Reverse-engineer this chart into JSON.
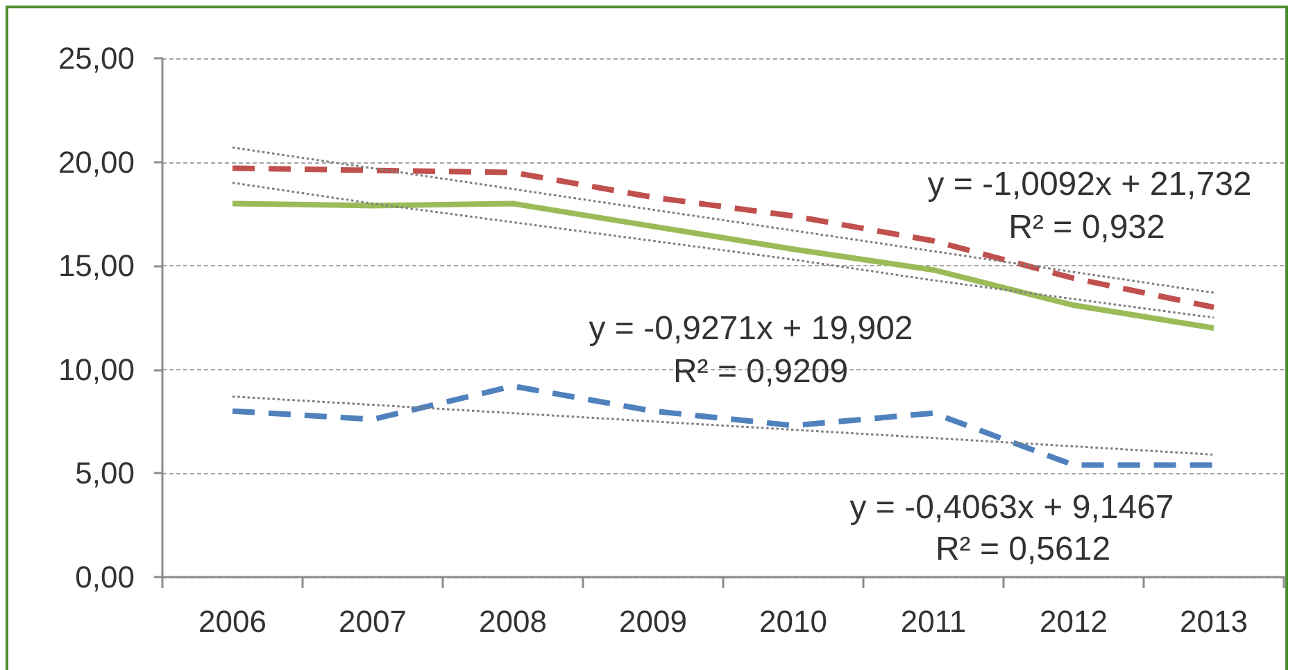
{
  "chart_data": {
    "type": "line",
    "categories": [
      "2006",
      "2007",
      "2008",
      "2009",
      "2010",
      "2011",
      "2012",
      "2013"
    ],
    "series": [
      {
        "color": "#c0504d",
        "line_style": "dashed",
        "values": [
          19.7,
          19.6,
          19.5,
          18.3,
          17.4,
          16.2,
          14.4,
          13.0
        ]
      },
      {
        "color": "#9bbb59",
        "line_style": "solid",
        "values": [
          18.0,
          17.9,
          18.0,
          16.9,
          15.8,
          14.8,
          13.1,
          12.0
        ]
      },
      {
        "color": "#4f81bd",
        "line_style": "dashed",
        "values": [
          8.0,
          7.6,
          9.2,
          8.0,
          7.3,
          7.9,
          5.4,
          5.4
        ]
      },
      {
        "color": "#808080",
        "line_style": "dotted",
        "values": [
          20.7,
          19.7,
          18.7,
          17.7,
          16.7,
          15.7,
          14.7,
          13.7
        ]
      },
      {
        "color": "#808080",
        "line_style": "dotted",
        "values": [
          19.0,
          18.0,
          17.1,
          16.2,
          15.3,
          14.3,
          13.4,
          12.5
        ]
      },
      {
        "color": "#808080",
        "line_style": "dotted",
        "values": [
          8.7,
          8.3,
          7.9,
          7.5,
          7.1,
          6.7,
          6.3,
          5.9
        ]
      }
    ],
    "annotations": [
      "y = -1,0092x + 21,732",
      "R² = 0,932",
      "y = -0,9271x + 19,902",
      "R² = 0,9209",
      "y = -0,4063x + 9,1467",
      "R² = 0,5612"
    ],
    "ylim": [
      0,
      25
    ],
    "yticks": [
      {
        "value": 0,
        "label": "0,00"
      },
      {
        "value": 5,
        "label": "5,00"
      },
      {
        "value": 10,
        "label": "10,00"
      },
      {
        "value": 15,
        "label": "15,00"
      },
      {
        "value": 20,
        "label": "20,00"
      },
      {
        "value": 25,
        "label": "25,00"
      }
    ],
    "grid": "y",
    "marker": "none"
  }
}
